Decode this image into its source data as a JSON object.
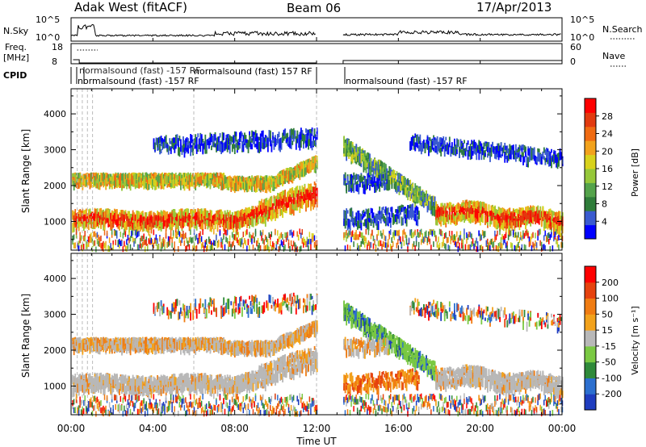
{
  "header": {
    "title": "Adak West (fitACF)",
    "beam": "Beam 06",
    "date": "17/Apr/2013"
  },
  "strip_panels": {
    "nsky": {
      "label": "N.Sky",
      "left_ticks": [
        "10^5",
        "10^0"
      ],
      "right_ticks": [
        "10^5",
        "10^0"
      ],
      "right_label": "N.Search"
    },
    "freq": {
      "label": "Freq.",
      "unit": "[MHz]",
      "left_ticks": [
        "18",
        "8"
      ],
      "right_ticks": [
        "60",
        "0"
      ],
      "right_label": "Nave"
    },
    "cpid": {
      "label": "CPID",
      "program_1": "normalsound (fast) -157 RF",
      "program_2": "normalsound (fast) -157 RF",
      "program_1_tail": "normalsound (fast) 157 RF"
    }
  },
  "chart_data": [
    {
      "type": "heatmap",
      "name": "power",
      "ylabel": "Slant Range [km]",
      "yticks": [
        1000,
        2000,
        3000,
        4000
      ],
      "ylim": [
        200,
        4700
      ],
      "xlim": [
        0,
        24
      ],
      "data_gap": [
        12.0,
        13.3
      ],
      "colorbar": {
        "label": "Power [dB]",
        "ticks": [
          "28",
          "24",
          "20",
          "16",
          "12",
          "8",
          "4"
        ],
        "colors": [
          "#0000ff",
          "#3a5bd0",
          "#2f7d3a",
          "#54a34b",
          "#96c83a",
          "#d8d21c",
          "#f2a21c",
          "#f06b12",
          "#e23a0f",
          "#ff0000"
        ]
      }
    },
    {
      "type": "heatmap",
      "name": "velocity",
      "ylabel": "Slant Range [km]",
      "yticks": [
        1000,
        2000,
        3000,
        4000
      ],
      "ylim": [
        200,
        4700
      ],
      "xlim": [
        0,
        24
      ],
      "data_gap": [
        12.0,
        13.3
      ],
      "colorbar": {
        "label": "Velocity [m s⁻¹]",
        "ticks": [
          "200",
          "100",
          "50",
          "15",
          "-15",
          "-50",
          "-100",
          "-200"
        ],
        "colors": [
          "#1f3dbf",
          "#2c6fcf",
          "#2f8a3a",
          "#7ac943",
          "#b8b8b8",
          "#f2a21c",
          "#f07c12",
          "#e6420e",
          "#ff0000"
        ]
      }
    }
  ],
  "xaxis": {
    "label": "Time UT",
    "ticks": [
      "00:00",
      "04:00",
      "08:00",
      "12:00",
      "16:00",
      "20:00",
      "00:00"
    ]
  }
}
